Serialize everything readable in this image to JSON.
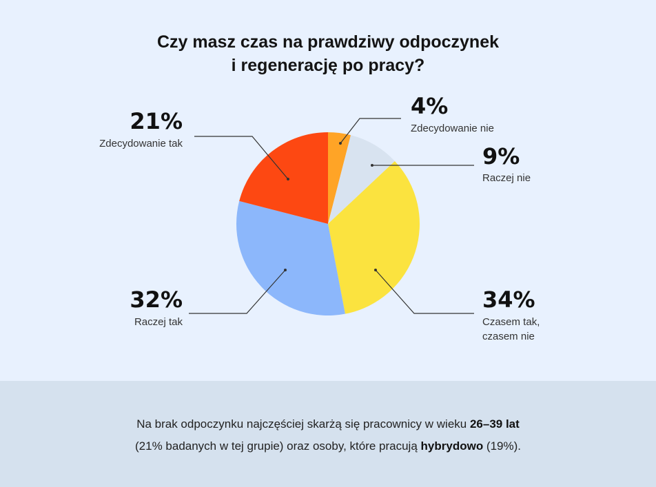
{
  "title": {
    "line1": "Czy masz czas na prawdziwy odpoczynek",
    "line2": "i regenerację po pracy?"
  },
  "chart_data": {
    "type": "pie",
    "title": "Czy masz czas na prawdziwy odpoczynek i regenerację po pracy?",
    "start": "top, clockwise",
    "slices": [
      {
        "label": "Zdecydowanie nie",
        "value": 4,
        "pct_label": "4%",
        "color": "#ffa426"
      },
      {
        "label": "Raczej nie",
        "value": 9,
        "pct_label": "9%",
        "color": "#d8e3f0"
      },
      {
        "label": "Czasem tak, czasem nie",
        "label_lines": [
          "Czasem tak,",
          "czasem nie"
        ],
        "value": 34,
        "pct_label": "34%",
        "color": "#fbe33f"
      },
      {
        "label": "Raczej tak",
        "value": 32,
        "pct_label": "32%",
        "color": "#8cb7fb"
      },
      {
        "label": "Zdecydowanie tak",
        "value": 21,
        "pct_label": "21%",
        "color": "#fd4812"
      }
    ]
  },
  "footer": {
    "line1_pre": "Na brak odpoczynku najczęściej skarżą się pracownicy w wieku ",
    "line1_bold": "26–39 lat",
    "line2_pre": "(21% badanych w tej grupie) oraz osoby, które pracują ",
    "line2_bold": "hybrydowo",
    "line2_post": " (19%)."
  },
  "colors": {
    "background": "#e8f1fe",
    "footer_background": "#d5e1ee"
  }
}
